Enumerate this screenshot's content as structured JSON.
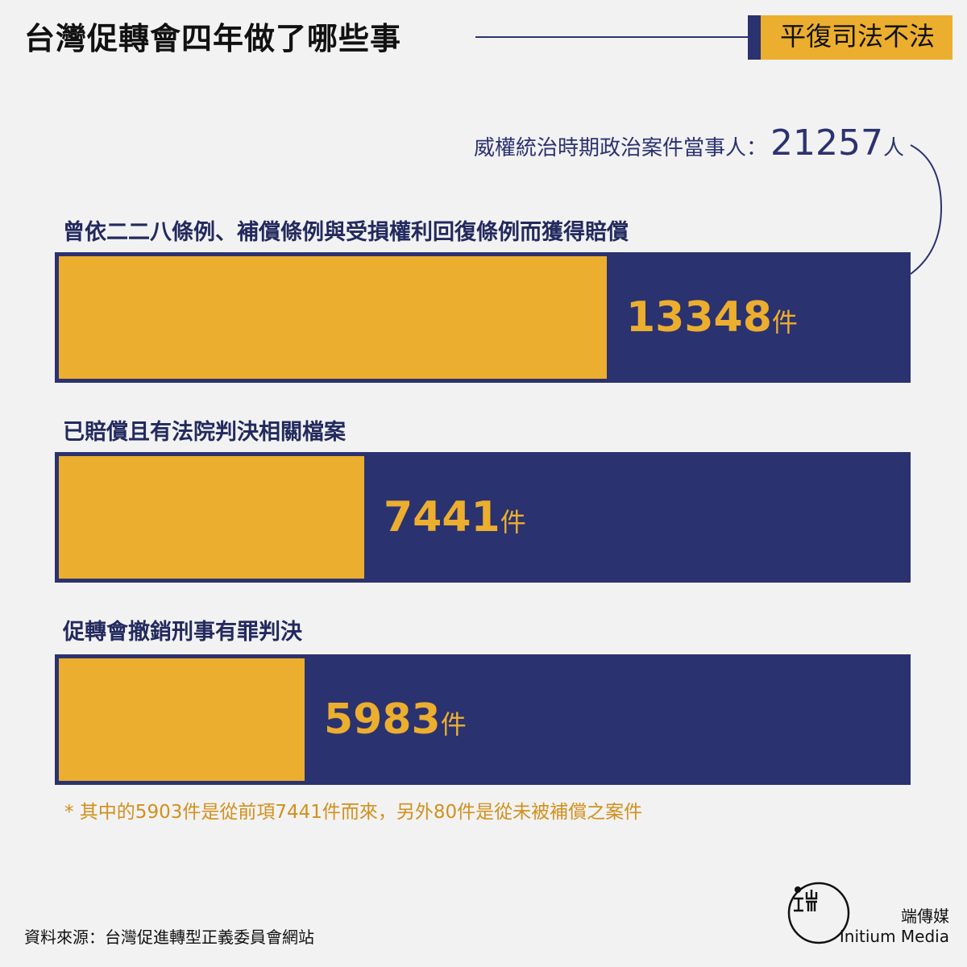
{
  "header": {
    "title": "台灣促轉會四年做了哪些事",
    "series_label": "平復司法不法"
  },
  "total": {
    "label": "威權統治時期政治案件當事人：",
    "value": "21257",
    "unit": "人"
  },
  "chart_data": {
    "type": "bar",
    "orientation": "horizontal",
    "max": 21257,
    "categories": [
      "曾依二二八條例、補償條例與受損權利回復條例而獲得賠償",
      "已賠償且有法院判決相關檔案",
      "促轉會撤銷刑事有罪判決"
    ],
    "values": [
      13348,
      7441,
      5983
    ],
    "value_labels": [
      "13348",
      "7441",
      "5983"
    ],
    "unit": "件",
    "colors": {
      "fill": "#ecae2e",
      "track": "#2b3270"
    }
  },
  "footnote": "* 其中的5903件是從前項7441件而來，另外80件是從未被補償之案件",
  "source": "資料來源：台灣促進轉型正義委員會網站",
  "brand": {
    "cn": "端傳媒",
    "en": "Initium Media",
    "logo_icon": "initium-logo-icon"
  },
  "colors": {
    "navy": "#2b3270",
    "gold": "#ecae2e",
    "footnote": "#d1901c"
  }
}
